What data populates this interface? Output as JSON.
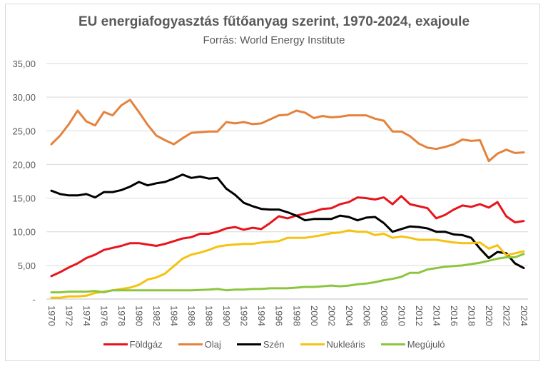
{
  "chart_data": {
    "type": "line",
    "title": "EU energiafogyasztás fűtőanyag szerint, 1970-2024, exajoule",
    "subtitle": "Forrás: World Energy Institute",
    "xlabel": "",
    "ylabel": "",
    "ylim": [
      0,
      35
    ],
    "yticks": [
      0,
      5,
      10,
      15,
      20,
      25,
      30,
      35
    ],
    "ytick_labels": [
      "-",
      "5,00",
      "10,00",
      "15,00",
      "20,00",
      "25,00",
      "30,00",
      "35,00"
    ],
    "x": [
      1970,
      1971,
      1972,
      1973,
      1974,
      1975,
      1976,
      1977,
      1978,
      1979,
      1980,
      1981,
      1982,
      1983,
      1984,
      1985,
      1986,
      1987,
      1988,
      1989,
      1990,
      1991,
      1992,
      1993,
      1994,
      1995,
      1996,
      1997,
      1998,
      1999,
      2000,
      2001,
      2002,
      2003,
      2004,
      2005,
      2006,
      2007,
      2008,
      2009,
      2010,
      2011,
      2012,
      2013,
      2014,
      2015,
      2016,
      2017,
      2018,
      2019,
      2020,
      2021,
      2022,
      2023,
      2024
    ],
    "xtick_labels": [
      "1970",
      "1972",
      "1974",
      "1976",
      "1978",
      "1980",
      "1982",
      "1984",
      "1986",
      "1988",
      "1990",
      "1992",
      "1994",
      "1996",
      "1998",
      "2000",
      "2002",
      "2004",
      "2006",
      "2008",
      "2010",
      "2012",
      "2014",
      "2016",
      "2018",
      "2020",
      "2022",
      "2024"
    ],
    "grid": true,
    "legend_position": "bottom",
    "series": [
      {
        "name": "Földgáz",
        "color": "#e8141c",
        "values": [
          3.4,
          4.0,
          4.7,
          5.3,
          6.1,
          6.6,
          7.3,
          7.6,
          7.9,
          8.3,
          8.3,
          8.1,
          7.9,
          8.2,
          8.6,
          9.0,
          9.2,
          9.7,
          9.7,
          10.0,
          10.5,
          10.7,
          10.3,
          10.6,
          10.4,
          11.3,
          12.3,
          12.0,
          12.4,
          12.7,
          13.0,
          13.4,
          13.5,
          14.1,
          14.4,
          15.1,
          15.0,
          14.8,
          15.1,
          14.1,
          15.3,
          14.1,
          13.8,
          13.5,
          12.0,
          12.5,
          13.3,
          13.9,
          13.7,
          14.1,
          13.6,
          14.4,
          12.3,
          11.4,
          11.6
        ]
      },
      {
        "name": "Olaj",
        "color": "#e4823c",
        "values": [
          23.0,
          24.3,
          26.0,
          28.0,
          26.4,
          25.8,
          27.8,
          27.3,
          28.8,
          29.6,
          27.8,
          25.9,
          24.3,
          23.6,
          23.0,
          23.9,
          24.7,
          24.8,
          24.9,
          24.9,
          26.3,
          26.1,
          26.3,
          26.0,
          26.1,
          26.7,
          27.3,
          27.4,
          28.0,
          27.7,
          26.9,
          27.2,
          27.0,
          27.1,
          27.3,
          27.3,
          27.3,
          26.8,
          26.5,
          24.9,
          24.9,
          24.2,
          23.1,
          22.5,
          22.3,
          22.6,
          23.0,
          23.7,
          23.5,
          23.6,
          20.5,
          21.6,
          22.2,
          21.7,
          21.8
        ]
      },
      {
        "name": "Szén",
        "color": "#000000",
        "values": [
          16.1,
          15.6,
          15.4,
          15.4,
          15.6,
          15.1,
          15.9,
          15.9,
          16.2,
          16.7,
          17.4,
          16.9,
          17.2,
          17.4,
          17.9,
          18.5,
          18.0,
          18.2,
          17.9,
          18.0,
          16.4,
          15.5,
          14.3,
          13.8,
          13.4,
          13.3,
          13.3,
          12.9,
          12.4,
          11.7,
          11.9,
          11.9,
          11.9,
          12.4,
          12.2,
          11.7,
          12.1,
          12.2,
          11.3,
          10.0,
          10.4,
          10.8,
          10.7,
          10.5,
          10.0,
          10.0,
          9.6,
          9.5,
          9.1,
          7.5,
          6.1,
          7.0,
          6.8,
          5.3,
          4.6
        ]
      },
      {
        "name": "Nukleáris",
        "color": "#f5c211",
        "values": [
          0.2,
          0.2,
          0.4,
          0.4,
          0.5,
          0.9,
          1.1,
          1.3,
          1.5,
          1.7,
          2.1,
          2.9,
          3.2,
          3.8,
          4.9,
          6.0,
          6.6,
          6.9,
          7.3,
          7.8,
          8.0,
          8.1,
          8.2,
          8.2,
          8.4,
          8.5,
          8.6,
          9.1,
          9.1,
          9.1,
          9.3,
          9.5,
          9.8,
          9.9,
          10.2,
          10.0,
          10.0,
          9.5,
          9.7,
          9.1,
          9.3,
          9.1,
          8.8,
          8.8,
          8.8,
          8.6,
          8.4,
          8.3,
          8.3,
          8.4,
          7.5,
          8.0,
          6.5,
          6.8,
          7.1
        ]
      },
      {
        "name": "Megújuló",
        "color": "#8cc63f",
        "values": [
          1.0,
          1.0,
          1.1,
          1.1,
          1.1,
          1.2,
          1.0,
          1.3,
          1.3,
          1.3,
          1.3,
          1.3,
          1.3,
          1.3,
          1.3,
          1.3,
          1.3,
          1.35,
          1.4,
          1.5,
          1.3,
          1.4,
          1.4,
          1.5,
          1.5,
          1.6,
          1.6,
          1.6,
          1.7,
          1.8,
          1.8,
          1.9,
          2.0,
          1.9,
          2.0,
          2.2,
          2.3,
          2.5,
          2.8,
          3.0,
          3.3,
          3.9,
          3.9,
          4.4,
          4.6,
          4.8,
          4.9,
          5.0,
          5.2,
          5.4,
          5.7,
          6.0,
          6.2,
          6.2,
          6.7
        ]
      }
    ]
  }
}
